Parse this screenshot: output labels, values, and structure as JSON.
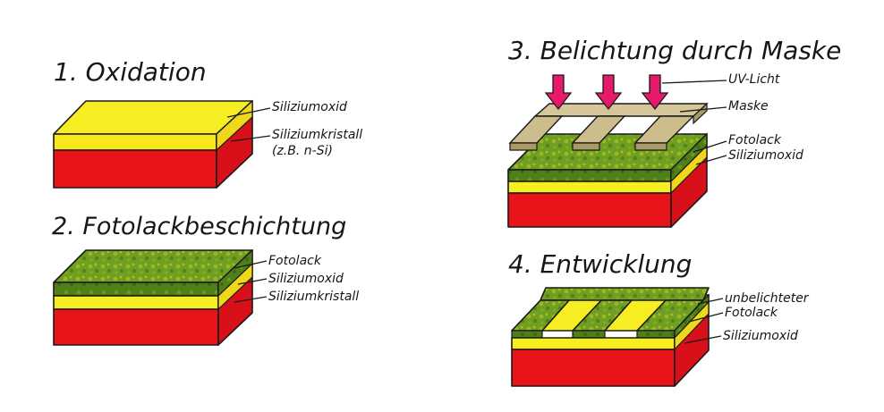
{
  "step1": {
    "title": "1. Oxidation",
    "labels": [
      "Siliziumoxid",
      "Siliziumkristall",
      "(z.B. n-Si)"
    ]
  },
  "step2": {
    "title": "2. Fotolackbeschichtung",
    "labels": [
      "Fotolack",
      "Siliziumoxid",
      "Siliziumkristall"
    ]
  },
  "step3": {
    "title": "3. Belichtung durch Maske",
    "labels": [
      "UV-Licht",
      "Maske",
      "Fotolack",
      "Siliziumoxid"
    ]
  },
  "step4": {
    "title": "4. Entwicklung",
    "labels": [
      "unbelichteter",
      "Fotolack",
      "Siliziumoxid"
    ]
  },
  "colors": {
    "silicon": "#e8141a",
    "oxide": "#f4ec1a",
    "photoresist": "#6a9a1e",
    "mask": "#c9b98a",
    "uv_arrow": "#e6196a"
  }
}
